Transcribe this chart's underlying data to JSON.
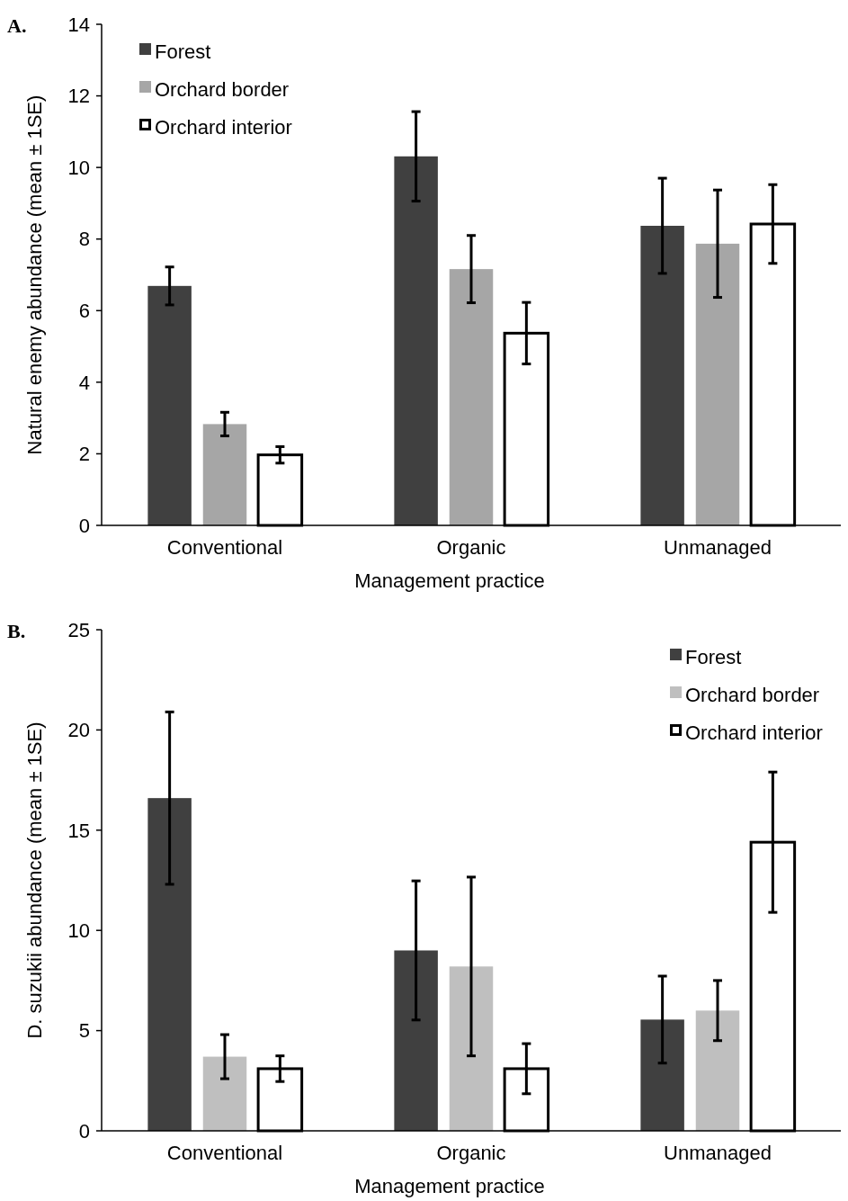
{
  "chart_data": [
    {
      "type": "bar",
      "title": "A.",
      "xlabel": "Management practice",
      "ylabel": "Natural enemy abundance (mean ± 1SE)",
      "categories": [
        "Conventional",
        "Organic",
        "Unmanaged"
      ],
      "ylim": [
        0,
        14
      ],
      "yticks": [
        0,
        2,
        4,
        6,
        8,
        10,
        12,
        14
      ],
      "legend": "top left",
      "series": [
        {
          "name": "Forest",
          "color": "#404040",
          "values": [
            6.69,
            10.31,
            8.37
          ],
          "errors": [
            0.53,
            1.25,
            1.33
          ]
        },
        {
          "name": "Orchard border",
          "color": "#a6a6a6",
          "values": [
            2.83,
            7.16,
            7.87
          ],
          "errors": [
            0.33,
            0.94,
            1.5
          ]
        },
        {
          "name": "Orchard interior",
          "color": "#ffffff",
          "values": [
            1.97,
            5.37,
            8.42
          ],
          "errors": [
            0.23,
            0.86,
            1.1
          ]
        }
      ]
    },
    {
      "type": "bar",
      "title": "B.",
      "xlabel": "Management practice",
      "ylabel": "D. suzukii abundance (mean ± 1SE)",
      "categories": [
        "Conventional",
        "Organic",
        "Unmanaged"
      ],
      "ylim": [
        0,
        25
      ],
      "yticks": [
        0,
        5,
        10,
        15,
        20,
        25
      ],
      "legend": "top right",
      "series": [
        {
          "name": "Forest",
          "color": "#404040",
          "values": [
            16.6,
            9.0,
            5.55
          ],
          "errors": [
            4.3,
            3.47,
            2.17
          ]
        },
        {
          "name": "Orchard border",
          "color": "#bfbfbf",
          "values": [
            3.7,
            8.2,
            6.0
          ],
          "errors": [
            1.1,
            4.46,
            1.5
          ]
        },
        {
          "name": "Orchard interior",
          "color": "#ffffff",
          "values": [
            3.1,
            3.1,
            14.4
          ],
          "errors": [
            0.64,
            1.25,
            3.5
          ]
        }
      ]
    }
  ]
}
